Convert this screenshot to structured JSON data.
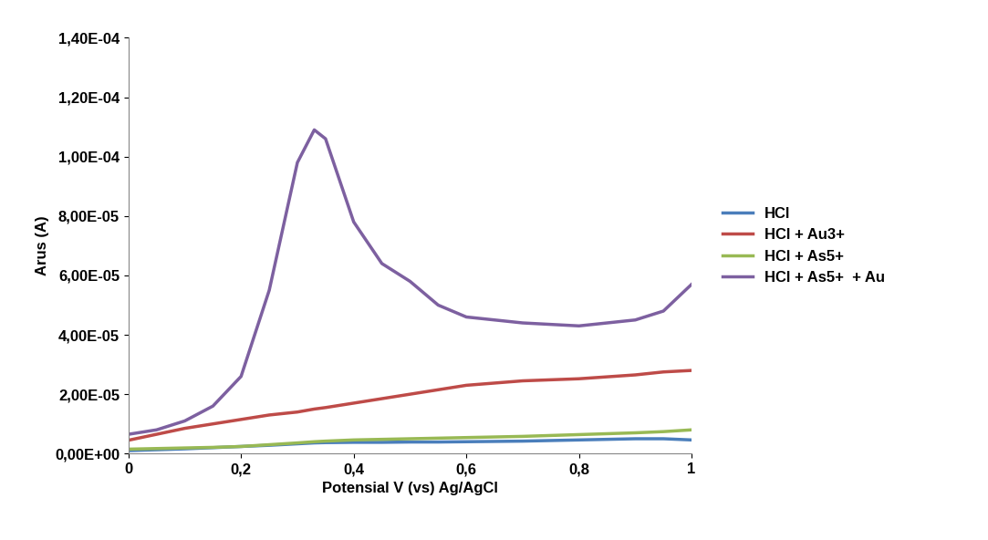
{
  "chart_data": {
    "type": "line",
    "x_label": "Potensial V (vs) Ag/AgCl",
    "y_label": "Arus (A)",
    "x": [
      0,
      0.05,
      0.1,
      0.15,
      0.2,
      0.25,
      0.3,
      0.33,
      0.35,
      0.4,
      0.45,
      0.5,
      0.55,
      0.6,
      0.7,
      0.8,
      0.9,
      0.95,
      1.0
    ],
    "series": [
      {
        "name": "HCl",
        "color": "#4a7ebb",
        "values": [
          1e-06,
          1.3e-06,
          1.6e-06,
          2e-06,
          2.4e-06,
          2.8e-06,
          3.3e-06,
          3.6e-06,
          3.7e-06,
          3.8e-06,
          3.8e-06,
          3.9e-06,
          3.9e-06,
          4e-06,
          4.2e-06,
          4.6e-06,
          5e-06,
          5e-06,
          4.6e-06
        ]
      },
      {
        "name": "HCl + Au3+",
        "color": "#be4b48",
        "values": [
          4.5e-06,
          6.5e-06,
          8.5e-06,
          1e-05,
          1.15e-05,
          1.3e-05,
          1.4e-05,
          1.5e-05,
          1.55e-05,
          1.7e-05,
          1.85e-05,
          2e-05,
          2.15e-05,
          2.3e-05,
          2.45e-05,
          2.52e-05,
          2.65e-05,
          2.75e-05,
          2.8e-05
        ]
      },
      {
        "name": "HCl + As5+",
        "color": "#98b954",
        "values": [
          1.5e-06,
          1.7e-06,
          1.9e-06,
          2.1e-06,
          2.4e-06,
          3e-06,
          3.6e-06,
          4e-06,
          4.2e-06,
          4.6e-06,
          4.8e-06,
          5e-06,
          5.2e-06,
          5.4e-06,
          5.8e-06,
          6.4e-06,
          7e-06,
          7.4e-06,
          8e-06
        ]
      },
      {
        "name": "HCl + As5+  + Au",
        "color": "#7d60a0",
        "values": [
          6.5e-06,
          8e-06,
          1.1e-05,
          1.6e-05,
          2.6e-05,
          5.5e-05,
          9.8e-05,
          0.000109,
          0.000106,
          7.8e-05,
          6.4e-05,
          5.8e-05,
          5e-05,
          4.6e-05,
          4.4e-05,
          4.3e-05,
          4.5e-05,
          4.8e-05,
          5.7e-05
        ]
      }
    ],
    "xlim": [
      0,
      1
    ],
    "xticks": [
      0,
      {
        "value": 0.2,
        "label": "0,2"
      },
      {
        "value": 0.4,
        "label": "0,4"
      },
      {
        "value": 0.6,
        "label": "0,6"
      },
      {
        "value": 0.8,
        "label": "0,8"
      },
      1
    ],
    "ylim": [
      0,
      0.00014
    ],
    "yticks": [
      {
        "value": 0,
        "label": "0,00E+00"
      },
      {
        "value": 2e-05,
        "label": "2,00E-05"
      },
      {
        "value": 4e-05,
        "label": "4,00E-05"
      },
      {
        "value": 6e-05,
        "label": "6,00E-05"
      },
      {
        "value": 8e-05,
        "label": "8,00E-05"
      },
      {
        "value": 0.0001,
        "label": "1,00E-04"
      },
      {
        "value": 0.00012,
        "label": "1,20E-04"
      },
      {
        "value": 0.00014,
        "label": "1,40E-04"
      }
    ],
    "grid": false,
    "legend": "right"
  }
}
